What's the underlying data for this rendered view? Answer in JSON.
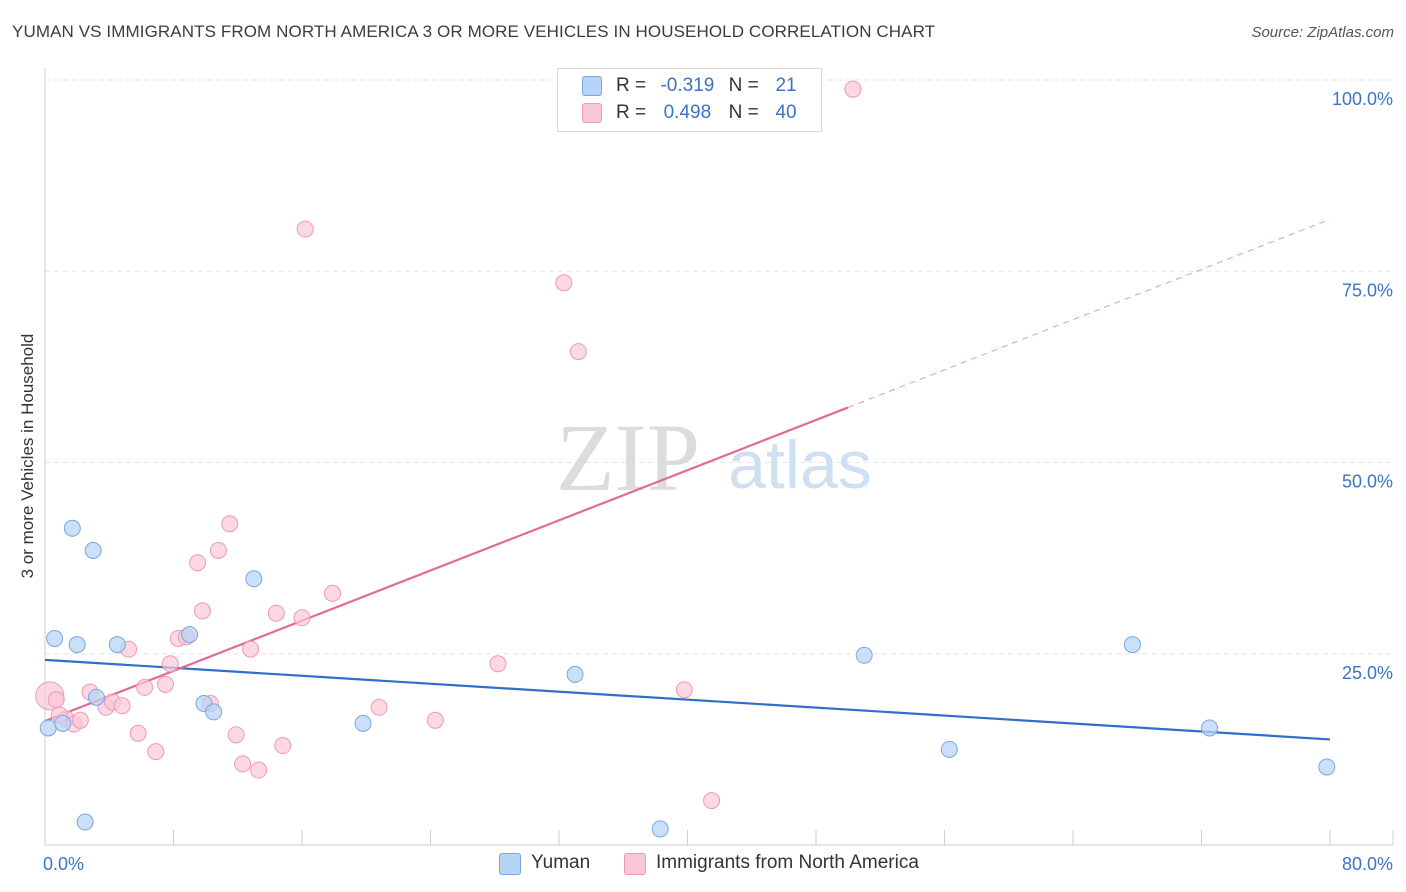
{
  "title": "YUMAN VS IMMIGRANTS FROM NORTH AMERICA 3 OR MORE VEHICLES IN HOUSEHOLD CORRELATION CHART",
  "source": "Source: ZipAtlas.com",
  "watermark": {
    "zip": "ZIP",
    "atlas": "atlas"
  },
  "legend": {
    "r_label": "R =",
    "n_label": "N =",
    "series": [
      {
        "name": "Yuman",
        "r": "-0.319",
        "n": "21"
      },
      {
        "name": "Immigrants from North America",
        "r": "0.498",
        "n": "40"
      }
    ]
  },
  "colors": {
    "yuman_fill": "#b8d4f5",
    "yuman_stroke": "#7aa7e0",
    "yuman_line": "#2f6fca",
    "imm_fill": "#f9c8d6",
    "imm_stroke": "#ef9ab4",
    "imm_line": "#e06c93",
    "tick_text": "#3a74c4",
    "grid": "#e6e6e6"
  },
  "chart_data": {
    "type": "scatter",
    "title": "YUMAN VS IMMIGRANTS FROM NORTH AMERICA 3 OR MORE VEHICLES IN HOUSEHOLD CORRELATION CHART",
    "xlabel": "",
    "ylabel": "3 or more Vehicles in Household",
    "xlim": [
      0,
      80
    ],
    "ylim": [
      0,
      100
    ],
    "x_tick_labels": [
      "0.0%",
      "80.0%"
    ],
    "y_ticks": [
      {
        "value": 25,
        "label": "25.0%"
      },
      {
        "value": 50,
        "label": "50.0%"
      },
      {
        "value": 75,
        "label": "75.0%"
      },
      {
        "value": 100,
        "label": "100.0%"
      }
    ],
    "grid": true,
    "legend_position": "top-center",
    "series": [
      {
        "name": "Yuman",
        "trend": {
          "x": [
            0,
            80
          ],
          "y": [
            24.2,
            13.8
          ]
        },
        "points": [
          {
            "x": 0.2,
            "y": 15.3
          },
          {
            "x": 0.6,
            "y": 27.0
          },
          {
            "x": 1.1,
            "y": 15.9
          },
          {
            "x": 1.7,
            "y": 41.4
          },
          {
            "x": 2.0,
            "y": 26.2
          },
          {
            "x": 2.5,
            "y": 3.0
          },
          {
            "x": 3.0,
            "y": 38.5
          },
          {
            "x": 3.2,
            "y": 19.3
          },
          {
            "x": 4.5,
            "y": 26.2
          },
          {
            "x": 9.0,
            "y": 27.5
          },
          {
            "x": 9.9,
            "y": 18.5
          },
          {
            "x": 10.5,
            "y": 17.4
          },
          {
            "x": 13.0,
            "y": 34.8
          },
          {
            "x": 19.8,
            "y": 15.9
          },
          {
            "x": 33.0,
            "y": 22.3
          },
          {
            "x": 38.3,
            "y": 2.1
          },
          {
            "x": 51.0,
            "y": 24.8
          },
          {
            "x": 56.3,
            "y": 12.5
          },
          {
            "x": 67.7,
            "y": 26.2
          },
          {
            "x": 72.5,
            "y": 15.3
          },
          {
            "x": 79.8,
            "y": 10.2
          }
        ]
      },
      {
        "name": "Immigrants from North America",
        "trend": {
          "x": [
            0,
            50
          ],
          "y": [
            16.2,
            57.2
          ]
        },
        "trend_dashed": {
          "x": [
            50,
            80
          ],
          "y": [
            57.2,
            81.8
          ]
        },
        "points": [
          {
            "x": 0.3,
            "y": 19.5,
            "size": "large"
          },
          {
            "x": 0.7,
            "y": 19.0
          },
          {
            "x": 1.3,
            "y": 16.5
          },
          {
            "x": 1.8,
            "y": 15.8
          },
          {
            "x": 2.2,
            "y": 16.3
          },
          {
            "x": 2.8,
            "y": 20.0
          },
          {
            "x": 3.8,
            "y": 18.0
          },
          {
            "x": 4.2,
            "y": 18.7
          },
          {
            "x": 4.8,
            "y": 18.2
          },
          {
            "x": 5.2,
            "y": 25.6
          },
          {
            "x": 5.8,
            "y": 14.6
          },
          {
            "x": 6.2,
            "y": 20.6
          },
          {
            "x": 6.9,
            "y": 12.2
          },
          {
            "x": 7.5,
            "y": 21.0
          },
          {
            "x": 7.8,
            "y": 23.7
          },
          {
            "x": 8.3,
            "y": 27.0
          },
          {
            "x": 8.8,
            "y": 27.2
          },
          {
            "x": 9.5,
            "y": 36.9
          },
          {
            "x": 9.8,
            "y": 30.6
          },
          {
            "x": 10.3,
            "y": 18.5
          },
          {
            "x": 10.8,
            "y": 38.5
          },
          {
            "x": 11.5,
            "y": 42.0
          },
          {
            "x": 11.9,
            "y": 14.4
          },
          {
            "x": 12.3,
            "y": 10.6
          },
          {
            "x": 12.8,
            "y": 25.6
          },
          {
            "x": 13.3,
            "y": 9.8
          },
          {
            "x": 14.4,
            "y": 30.3
          },
          {
            "x": 14.8,
            "y": 13.0
          },
          {
            "x": 16.0,
            "y": 29.7
          },
          {
            "x": 16.2,
            "y": 80.5
          },
          {
            "x": 17.9,
            "y": 32.9
          },
          {
            "x": 20.8,
            "y": 18.0
          },
          {
            "x": 24.3,
            "y": 16.3
          },
          {
            "x": 28.2,
            "y": 23.7
          },
          {
            "x": 32.3,
            "y": 73.5
          },
          {
            "x": 33.2,
            "y": 64.5
          },
          {
            "x": 39.8,
            "y": 20.3
          },
          {
            "x": 41.5,
            "y": 5.8
          },
          {
            "x": 50.3,
            "y": 98.8
          },
          {
            "x": 0.9,
            "y": 17.0
          }
        ]
      }
    ]
  }
}
